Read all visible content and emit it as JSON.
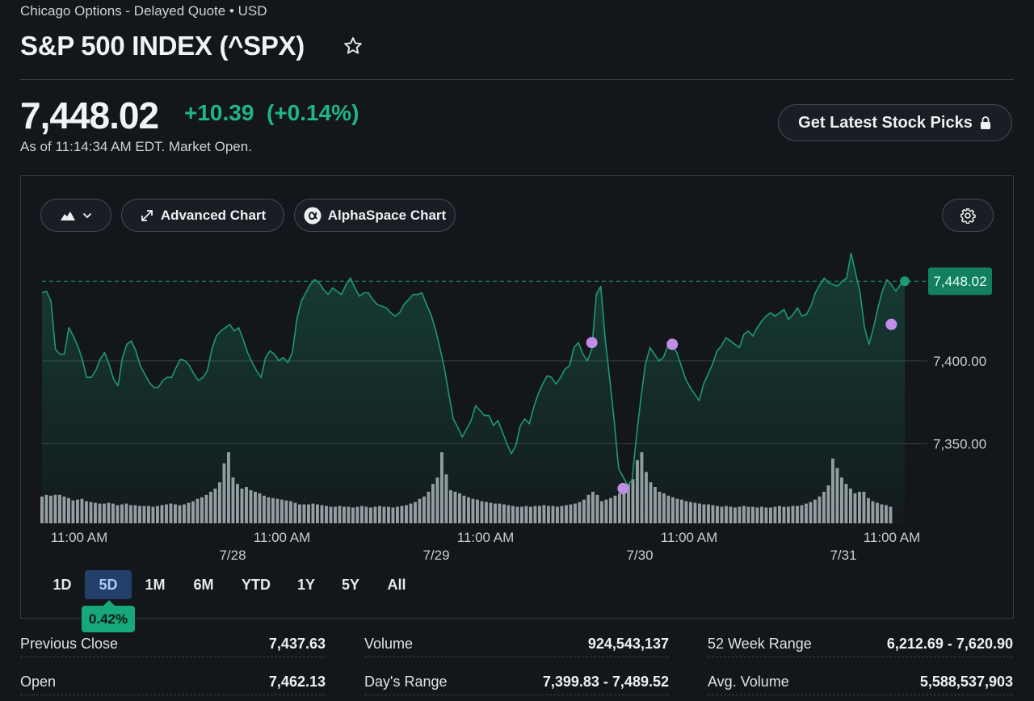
{
  "header": {
    "subtitle": "Chicago Options - Delayed Quote • USD",
    "title": "S&P 500 INDEX (^SPX)",
    "watchlist_icon": "star-outline-icon"
  },
  "quote": {
    "price": "7,448.02",
    "change": "+10.39",
    "change_pct": "(+0.14%)",
    "as_of": "As of 11:14:34 AM EDT. Market Open.",
    "positive_color": "#1fb584"
  },
  "cta": {
    "label": "Get Latest Stock Picks",
    "icon": "lock-icon"
  },
  "toolbar": {
    "chart_type_icon": "mountain-chart-icon",
    "advanced_label": "Advanced Chart",
    "alphaspace_label": "AlphaSpace Chart",
    "settings_icon": "gear-icon"
  },
  "ranges": {
    "items": [
      "1D",
      "5D",
      "1M",
      "6M",
      "YTD",
      "1Y",
      "5Y",
      "All"
    ],
    "active": "5D",
    "change_badge": "0.42%"
  },
  "stats": [
    {
      "label": "Previous Close",
      "value": "7,437.63"
    },
    {
      "label": "Volume",
      "value": "924,543,137"
    },
    {
      "label": "52 Week Range",
      "value": "6,212.69 - 7,620.90"
    },
    {
      "label": "Open",
      "value": "7,462.13"
    },
    {
      "label": "Day's Range",
      "value": "7,399.83 - 7,489.52"
    },
    {
      "label": "Avg. Volume",
      "value": "5,588,537,903"
    }
  ],
  "chart_data": {
    "type": "area",
    "y_ticks": [
      "7,350.00",
      "7,400.00"
    ],
    "y_tick_values": [
      7350,
      7400
    ],
    "current_label": "7,448.02",
    "current_value": 7448.02,
    "x_time_labels": [
      "11:00 AM",
      "11:00 AM",
      "11:00 AM",
      "11:00 AM",
      "11:00 AM"
    ],
    "x_date_labels": [
      "7/28",
      "7/29",
      "7/30",
      "7/31"
    ],
    "ylim": [
      7302,
      7491
    ],
    "line_color": "#1d9a70",
    "event_marker_color": "#c08ee8",
    "price": [
      7441,
      7442,
      7436,
      7407,
      7404,
      7404,
      7420,
      7415,
      7409,
      7401,
      7390,
      7390,
      7394,
      7401,
      7405,
      7398,
      7389,
      7385,
      7402,
      7410,
      7412,
      7406,
      7397,
      7392,
      7387,
      7384,
      7384,
      7388,
      7390,
      7390,
      7396,
      7401,
      7400,
      7397,
      7392,
      7388,
      7390,
      7394,
      7407,
      7415,
      7418,
      7420,
      7422,
      7418,
      7420,
      7413,
      7405,
      7399,
      7394,
      7390,
      7402,
      7406,
      7404,
      7400,
      7402,
      7399,
      7405,
      7425,
      7436,
      7441,
      7446,
      7449,
      7447,
      7443,
      7440,
      7444,
      7442,
      7440,
      7446,
      7450,
      7444,
      7439,
      7441,
      7441,
      7437,
      7434,
      7433,
      7432,
      7429,
      7427,
      7429,
      7434,
      7437,
      7440,
      7440,
      7441,
      7434,
      7428,
      7419,
      7408,
      7396,
      7380,
      7365,
      7360,
      7354,
      7359,
      7364,
      7373,
      7370,
      7367,
      7367,
      7361,
      7364,
      7357,
      7350,
      7344,
      7349,
      7361,
      7365,
      7362,
      7372,
      7380,
      7386,
      7391,
      7390,
      7386,
      7390,
      7395,
      7397,
      7408,
      7411,
      7404,
      7400,
      7407,
      7440,
      7445,
      7413,
      7389,
      7364,
      7335,
      7330,
      7325,
      7328,
      7355,
      7378,
      7398,
      7408,
      7404,
      7400,
      7402,
      7409,
      7410,
      7405,
      7397,
      7389,
      7384,
      7380,
      7376,
      7386,
      7392,
      7398,
      7406,
      7409,
      7414,
      7412,
      7410,
      7408,
      7416,
      7418,
      7415,
      7420,
      7424,
      7427,
      7429,
      7427,
      7429,
      7431,
      7425,
      7428,
      7432,
      7427,
      7428,
      7433,
      7441,
      7446,
      7450,
      7447,
      7446,
      7445,
      7448,
      7450,
      7465,
      7453,
      7441,
      7420,
      7410,
      7420,
      7432,
      7442,
      7449,
      7446,
      7442,
      7446,
      7448
    ],
    "volume": [
      34,
      36,
      35,
      36,
      36,
      34,
      32,
      29,
      30,
      31,
      28,
      27,
      26,
      25,
      25,
      26,
      25,
      23,
      24,
      25,
      23,
      23,
      22,
      22,
      22,
      21,
      22,
      23,
      24,
      25,
      24,
      23,
      24,
      26,
      28,
      31,
      33,
      36,
      40,
      44,
      52,
      76,
      90,
      58,
      50,
      44,
      46,
      42,
      40,
      38,
      35,
      33,
      32,
      31,
      30,
      29,
      28,
      26,
      24,
      24,
      24,
      25,
      24,
      23,
      22,
      21,
      21,
      22,
      21,
      21,
      20,
      21,
      22,
      21,
      20,
      21,
      22,
      21,
      21,
      20,
      21,
      22,
      23,
      25,
      27,
      31,
      34,
      40,
      50,
      58,
      90,
      62,
      42,
      40,
      38,
      35,
      33,
      31,
      30,
      28,
      27,
      26,
      25,
      25,
      24,
      23,
      22,
      21,
      21,
      22,
      21,
      22,
      22,
      23,
      22,
      22,
      21,
      22,
      23,
      24,
      25,
      27,
      30,
      36,
      40,
      36,
      28,
      30,
      32,
      35,
      38,
      44,
      50,
      56,
      80,
      90,
      65,
      52,
      46,
      40,
      38,
      35,
      33,
      31,
      30,
      28,
      27,
      26,
      25,
      24,
      24,
      23,
      22,
      21,
      22,
      21,
      20,
      21,
      22,
      21,
      21,
      20,
      21,
      20,
      20,
      21,
      22,
      21,
      21,
      22,
      22,
      23,
      25,
      27,
      30,
      34,
      40,
      48,
      82,
      70,
      58,
      50,
      44,
      38,
      40,
      40,
      32,
      28,
      26,
      24,
      23,
      21
    ],
    "events": [
      {
        "index": 123,
        "value": 7411
      },
      {
        "index": 130,
        "value": 7323
      },
      {
        "index": 141,
        "value": 7410
      },
      {
        "index": 190,
        "value": 7422
      }
    ]
  }
}
